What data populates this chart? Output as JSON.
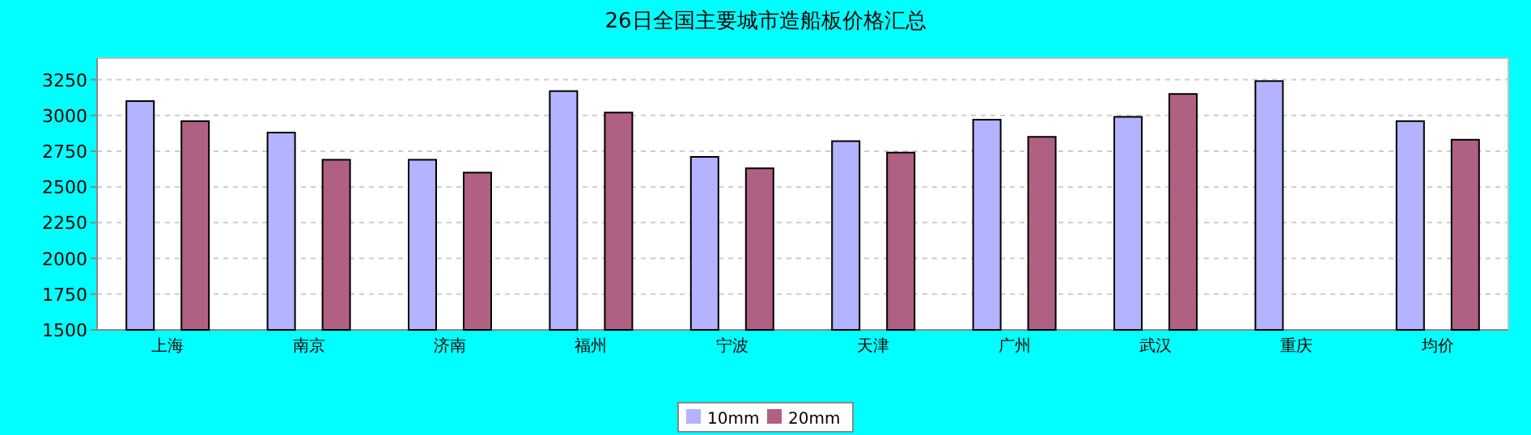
{
  "chart_data": {
    "type": "bar",
    "title": "26日全国主要城市造船板价格汇总",
    "categories": [
      "上海",
      "南京",
      "济南",
      "福州",
      "宁波",
      "天津",
      "广州",
      "武汉",
      "重庆",
      "均价"
    ],
    "series": [
      {
        "name": "10mm",
        "color": "#b3b3ff",
        "values": [
          3100,
          2880,
          2690,
          3170,
          2710,
          2820,
          2970,
          2990,
          3240,
          2960
        ]
      },
      {
        "name": "20mm",
        "color": "#b06082",
        "values": [
          2960,
          2690,
          2600,
          3020,
          2630,
          2740,
          2850,
          3150,
          null,
          2830
        ]
      }
    ],
    "ylim": [
      1500,
      3400
    ],
    "yticks": [
      1500,
      1750,
      2000,
      2250,
      2500,
      2750,
      3000,
      3250
    ],
    "grid": "y",
    "legend": "bottom"
  }
}
